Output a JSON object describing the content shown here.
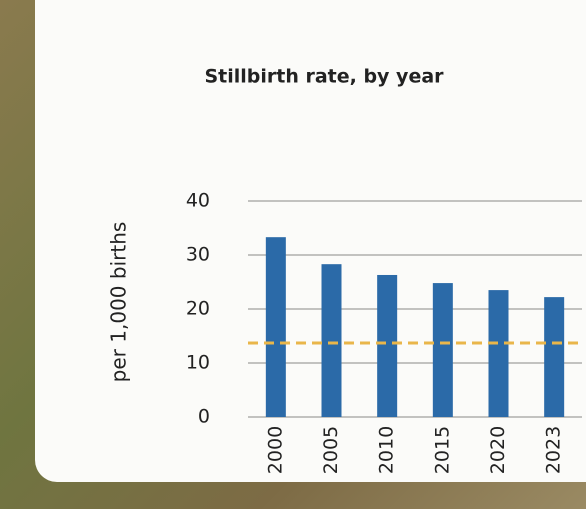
{
  "chart_data": {
    "type": "bar",
    "title": "Stillbirth rate, by year",
    "y_label": "per 1,000 births",
    "categories": [
      "2000",
      "2005",
      "2010",
      "2015",
      "2020",
      "2023"
    ],
    "values": [
      33.3,
      28.3,
      26.3,
      24.8,
      23.5,
      22.2
    ],
    "color": "#2b6aa8",
    "ylim": [
      0,
      40
    ],
    "yticks": [
      0,
      10,
      20,
      30,
      40
    ],
    "grid": true,
    "reference_line": {
      "value": 13.7,
      "color": "#e9b64a"
    }
  }
}
